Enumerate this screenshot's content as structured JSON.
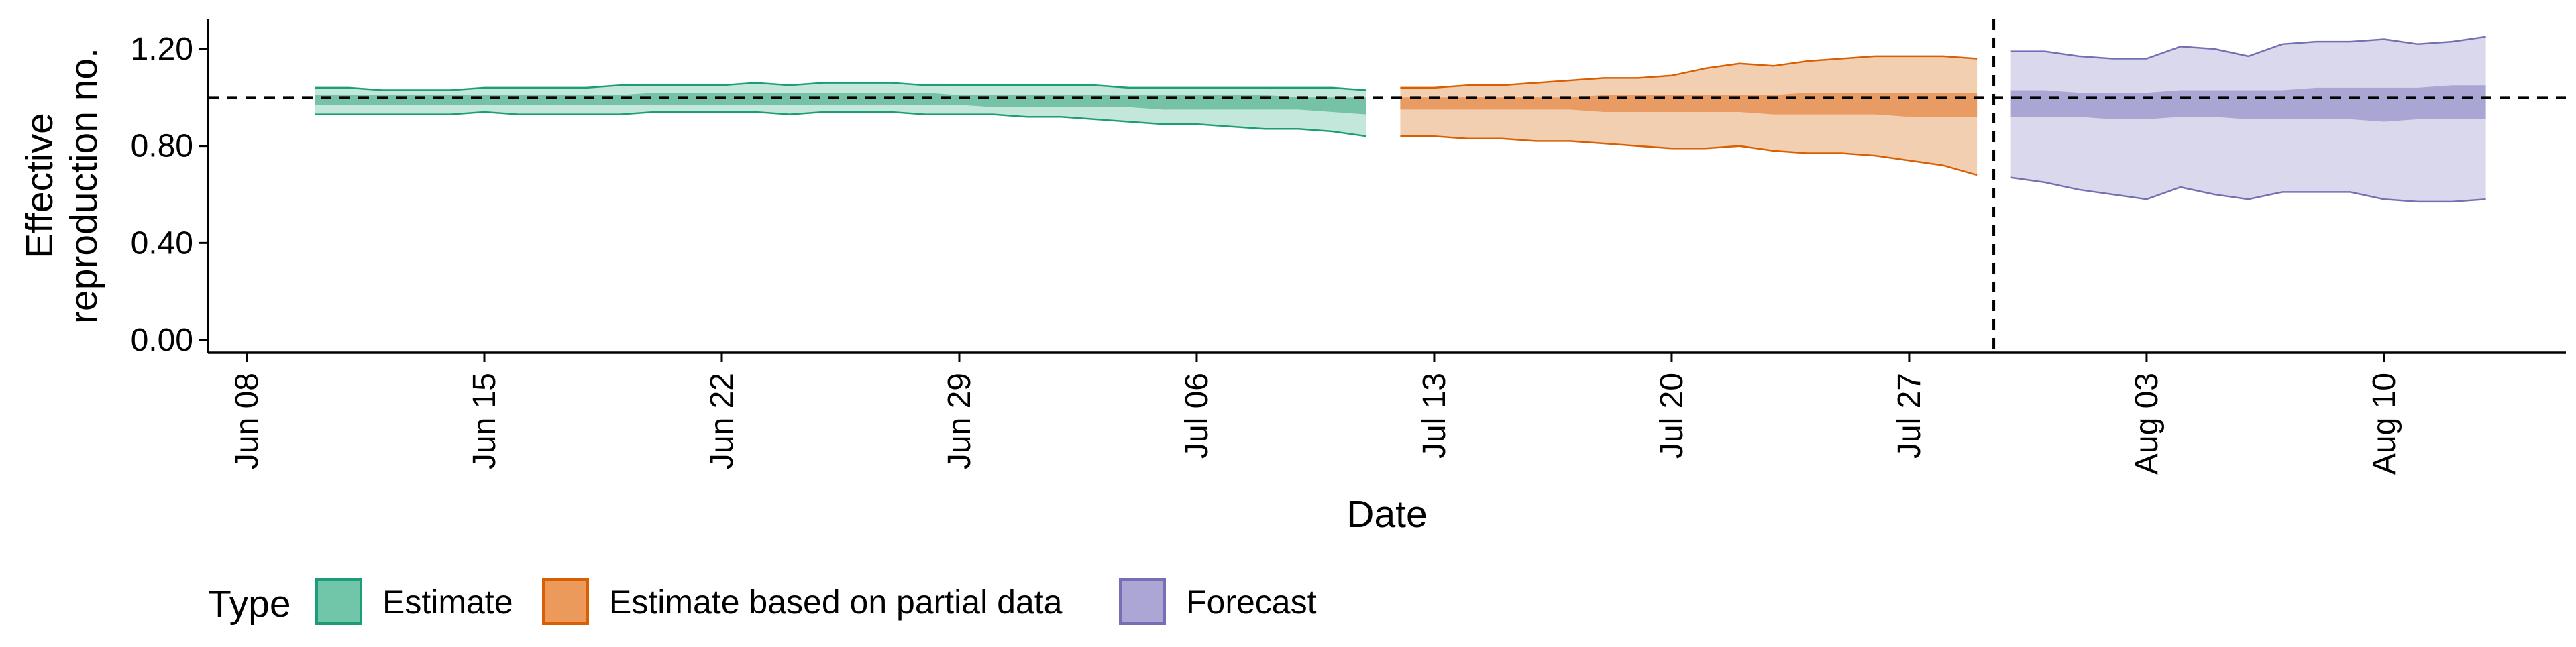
{
  "chart_data": {
    "type": "area",
    "title": "",
    "xlabel": "Date",
    "ylabel_lines": [
      "Effective",
      "reproduction no."
    ],
    "x_ticks": [
      {
        "date": "2020-06-08",
        "label": "Jun 08"
      },
      {
        "date": "2020-06-15",
        "label": "Jun 15"
      },
      {
        "date": "2020-06-22",
        "label": "Jun 22"
      },
      {
        "date": "2020-06-29",
        "label": "Jun 29"
      },
      {
        "date": "2020-07-06",
        "label": "Jul 06"
      },
      {
        "date": "2020-07-13",
        "label": "Jul 13"
      },
      {
        "date": "2020-07-20",
        "label": "Jul 20"
      },
      {
        "date": "2020-07-27",
        "label": "Jul 27"
      },
      {
        "date": "2020-08-03",
        "label": "Aug 03"
      },
      {
        "date": "2020-08-10",
        "label": "Aug 10"
      }
    ],
    "xlim": [
      "2020-06-08",
      "2020-08-15"
    ],
    "y_ticks": [
      {
        "value": 0.0,
        "label": "0.00"
      },
      {
        "value": 0.4,
        "label": "0.40"
      },
      {
        "value": 0.8,
        "label": "0.80"
      },
      {
        "value": 1.2,
        "label": "1.20"
      }
    ],
    "ylim": [
      0,
      1.3
    ],
    "reference_line_y": 1.0,
    "forecast_start": "2020-07-29",
    "grid": false,
    "legend": {
      "title": "Type",
      "position": "bottom-left",
      "entries": [
        {
          "label": "Estimate",
          "fill": "#71c6a9",
          "stroke": "#1b9e77"
        },
        {
          "label": "Estimate based on partial data",
          "fill": "#eb9a5b",
          "stroke": "#d95f02"
        },
        {
          "label": "Forecast",
          "fill": "#aba6d4",
          "stroke": "#7570b3"
        }
      ]
    },
    "series": [
      {
        "name": "Estimate",
        "outer_fill": "#c3e8db",
        "inner_fill": "#75c2a6",
        "stroke": "#1b9e77",
        "x": [
          "2020-06-10",
          "2020-06-11",
          "2020-06-12",
          "2020-06-13",
          "2020-06-14",
          "2020-06-15",
          "2020-06-16",
          "2020-06-17",
          "2020-06-18",
          "2020-06-19",
          "2020-06-20",
          "2020-06-21",
          "2020-06-22",
          "2020-06-23",
          "2020-06-24",
          "2020-06-25",
          "2020-06-26",
          "2020-06-27",
          "2020-06-28",
          "2020-06-29",
          "2020-06-30",
          "2020-07-01",
          "2020-07-02",
          "2020-07-03",
          "2020-07-04",
          "2020-07-05",
          "2020-07-06",
          "2020-07-07",
          "2020-07-08",
          "2020-07-09",
          "2020-07-10",
          "2020-07-11"
        ],
        "upper90": [
          1.04,
          1.04,
          1.03,
          1.03,
          1.03,
          1.04,
          1.04,
          1.04,
          1.04,
          1.05,
          1.05,
          1.05,
          1.05,
          1.06,
          1.05,
          1.06,
          1.06,
          1.06,
          1.05,
          1.05,
          1.05,
          1.05,
          1.05,
          1.05,
          1.04,
          1.04,
          1.04,
          1.04,
          1.04,
          1.04,
          1.04,
          1.03
        ],
        "upper50": [
          1.01,
          1.01,
          1.01,
          1.01,
          1.01,
          1.01,
          1.01,
          1.01,
          1.01,
          1.01,
          1.02,
          1.02,
          1.02,
          1.02,
          1.02,
          1.02,
          1.02,
          1.02,
          1.02,
          1.01,
          1.01,
          1.01,
          1.01,
          1.01,
          1.01,
          1.01,
          1.01,
          1.01,
          1.01,
          1.0,
          1.0,
          1.0
        ],
        "lower50": [
          0.97,
          0.97,
          0.97,
          0.97,
          0.97,
          0.97,
          0.97,
          0.97,
          0.97,
          0.97,
          0.97,
          0.97,
          0.97,
          0.97,
          0.97,
          0.97,
          0.97,
          0.97,
          0.97,
          0.97,
          0.96,
          0.96,
          0.96,
          0.96,
          0.96,
          0.95,
          0.95,
          0.95,
          0.95,
          0.95,
          0.94,
          0.93
        ],
        "lower90": [
          0.93,
          0.93,
          0.93,
          0.93,
          0.93,
          0.94,
          0.93,
          0.93,
          0.93,
          0.93,
          0.94,
          0.94,
          0.94,
          0.94,
          0.93,
          0.94,
          0.94,
          0.94,
          0.93,
          0.93,
          0.93,
          0.92,
          0.92,
          0.91,
          0.9,
          0.89,
          0.89,
          0.88,
          0.87,
          0.87,
          0.86,
          0.84
        ]
      },
      {
        "name": "Estimate based on partial data",
        "outer_fill": "#f3cfb2",
        "inner_fill": "#e89b63",
        "stroke": "#d95f02",
        "x": [
          "2020-07-12",
          "2020-07-13",
          "2020-07-14",
          "2020-07-15",
          "2020-07-16",
          "2020-07-17",
          "2020-07-18",
          "2020-07-19",
          "2020-07-20",
          "2020-07-21",
          "2020-07-22",
          "2020-07-23",
          "2020-07-24",
          "2020-07-25",
          "2020-07-26",
          "2020-07-27",
          "2020-07-28",
          "2020-07-29"
        ],
        "upper90": [
          1.04,
          1.04,
          1.05,
          1.05,
          1.06,
          1.07,
          1.08,
          1.08,
          1.09,
          1.12,
          1.14,
          1.13,
          1.15,
          1.16,
          1.17,
          1.17,
          1.17,
          1.16
        ],
        "upper50": [
          1.0,
          1.0,
          1.0,
          1.0,
          1.0,
          1.0,
          1.01,
          1.01,
          1.01,
          1.01,
          1.01,
          1.01,
          1.02,
          1.02,
          1.02,
          1.02,
          1.02,
          1.02
        ],
        "lower50": [
          0.95,
          0.95,
          0.95,
          0.95,
          0.95,
          0.95,
          0.94,
          0.94,
          0.94,
          0.94,
          0.94,
          0.93,
          0.93,
          0.93,
          0.93,
          0.92,
          0.92,
          0.92
        ],
        "lower90": [
          0.84,
          0.84,
          0.83,
          0.83,
          0.82,
          0.82,
          0.81,
          0.8,
          0.79,
          0.79,
          0.8,
          0.78,
          0.77,
          0.77,
          0.76,
          0.74,
          0.72,
          0.68
        ]
      },
      {
        "name": "Forecast",
        "outer_fill": "#dad8ec",
        "inner_fill": "#aaa6d4",
        "stroke": "#7570b3",
        "x": [
          "2020-07-30",
          "2020-07-31",
          "2020-08-01",
          "2020-08-02",
          "2020-08-03",
          "2020-08-04",
          "2020-08-05",
          "2020-08-06",
          "2020-08-07",
          "2020-08-08",
          "2020-08-09",
          "2020-08-10",
          "2020-08-11",
          "2020-08-12",
          "2020-08-13"
        ],
        "upper90": [
          1.19,
          1.19,
          1.17,
          1.16,
          1.16,
          1.21,
          1.2,
          1.17,
          1.22,
          1.23,
          1.23,
          1.24,
          1.22,
          1.23,
          1.25
        ],
        "upper50": [
          1.03,
          1.03,
          1.02,
          1.02,
          1.02,
          1.03,
          1.03,
          1.03,
          1.03,
          1.04,
          1.04,
          1.04,
          1.04,
          1.05,
          1.05
        ],
        "lower50": [
          0.92,
          0.92,
          0.92,
          0.91,
          0.91,
          0.92,
          0.92,
          0.91,
          0.91,
          0.91,
          0.91,
          0.9,
          0.91,
          0.91,
          0.91
        ],
        "lower90": [
          0.67,
          0.65,
          0.62,
          0.6,
          0.58,
          0.63,
          0.6,
          0.58,
          0.61,
          0.61,
          0.61,
          0.58,
          0.57,
          0.57,
          0.58
        ]
      }
    ]
  }
}
